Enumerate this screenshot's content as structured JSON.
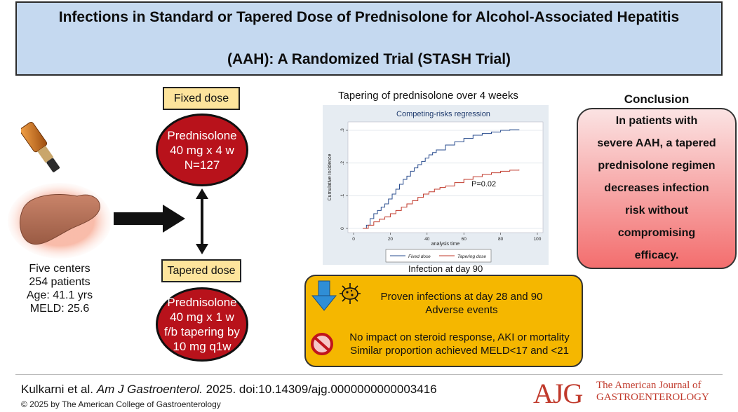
{
  "title": {
    "line1": "Infections in Standard or Tapered Dose of Prednisolone for Alcohol-Associated Hepatitis",
    "line2": "(AAH): A Randomized Trial (STASH Trial)"
  },
  "study_info": {
    "lines": [
      "Five centers",
      "254 patients",
      "Age: 41.1 yrs",
      "MELD: 25.6"
    ]
  },
  "fixed": {
    "label": "Fixed dose",
    "lines": [
      "Prednisolone",
      "40 mg x 4 w",
      "N=127"
    ]
  },
  "tapered": {
    "label": "Tapered dose",
    "lines": [
      "Prednisolone",
      "40 mg x 1 w",
      "f/b tapering by",
      "10 mg q1w"
    ]
  },
  "chart_caption_top": "Tapering of prednisolone over 4 weeks",
  "chart_caption_bottom": "Infection at day 90",
  "chart_data": {
    "type": "line",
    "title": "Competing-risks regression",
    "xlabel": "analysis time",
    "ylabel": "Cumulative Incidence",
    "xlim": [
      0,
      100
    ],
    "ylim": [
      0,
      0.3
    ],
    "xticks": [
      0,
      20,
      40,
      60,
      80,
      100
    ],
    "yticks": [
      0,
      0.1,
      0.2,
      0.3
    ],
    "ytick_labels": [
      "0",
      ".1",
      ".2",
      ".3"
    ],
    "annotation": "P=0.02",
    "legend_position": "bottom",
    "series": [
      {
        "name": "Fixed dose",
        "color": "#2a4d8f",
        "x": [
          5,
          7,
          9,
          11,
          13,
          15,
          17,
          19,
          21,
          23,
          25,
          27,
          29,
          31,
          33,
          35,
          37,
          39,
          41,
          43,
          45,
          50,
          55,
          60,
          65,
          70,
          75,
          80,
          85,
          90
        ],
        "y": [
          0.0,
          0.01,
          0.03,
          0.045,
          0.055,
          0.065,
          0.075,
          0.09,
          0.105,
          0.12,
          0.135,
          0.15,
          0.16,
          0.175,
          0.185,
          0.195,
          0.205,
          0.215,
          0.225,
          0.232,
          0.24,
          0.255,
          0.265,
          0.275,
          0.285,
          0.29,
          0.295,
          0.3,
          0.302,
          0.303
        ]
      },
      {
        "name": "Tapering dose",
        "color": "#c0392b",
        "x": [
          5,
          8,
          11,
          14,
          17,
          20,
          23,
          26,
          29,
          32,
          35,
          38,
          41,
          44,
          47,
          50,
          55,
          60,
          65,
          70,
          75,
          80,
          85,
          90
        ],
        "y": [
          0.0,
          0.01,
          0.02,
          0.028,
          0.035,
          0.045,
          0.055,
          0.065,
          0.075,
          0.085,
          0.095,
          0.105,
          0.112,
          0.12,
          0.125,
          0.13,
          0.14,
          0.15,
          0.158,
          0.165,
          0.17,
          0.175,
          0.178,
          0.18
        ]
      }
    ]
  },
  "conclusion": {
    "heading": "Conclusion",
    "lines": [
      "In patients with",
      "severe AAH, a tapered",
      "prednisolone regimen",
      "decreases infection",
      "risk without",
      "compromising",
      "efficacy."
    ]
  },
  "outcomes": {
    "decreased": [
      "Proven infections at day 28 and 90",
      "Adverse events"
    ],
    "no_impact": [
      "No impact on steroid response, AKI or mortality",
      "Similar proportion achieved MELD<17 and <21"
    ]
  },
  "icons": {
    "down": "down-arrow-icon",
    "bacteria": "bacteria-icon",
    "no": "prohibited-icon",
    "bottle": "alcohol-bottle-icon",
    "liver": "liver-icon"
  },
  "footer": {
    "citation_authors": "Kulkarni et al. ",
    "citation_journal": "Am J Gastroenterol.",
    "citation_rest": " 2025. doi:10.14309/ajg.0000000000003416",
    "copyright": "© 2025 by The American College of Gastroenterology",
    "logo": "AJG",
    "journal_line1": "The American Journal of",
    "journal_line2": "GASTROENTEROLOGY"
  }
}
